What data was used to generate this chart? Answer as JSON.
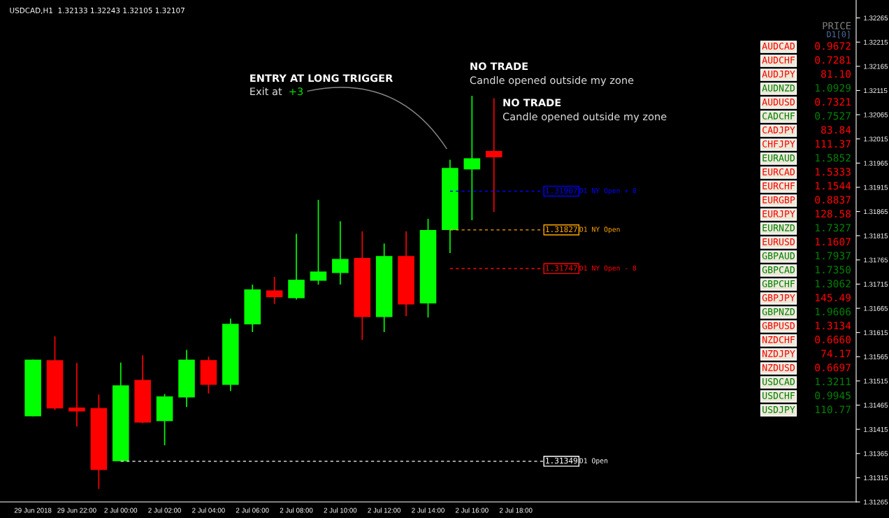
{
  "chart_data": [
    {
      "type": "candlestick",
      "title": "USDCAD,H1  1.32133 1.32243 1.32105 1.32107",
      "categories": [
        null,
        "29 Jun 2018",
        null,
        "29 Jun 22:00",
        null,
        "2 Jul 00:00",
        null,
        "2 Jul 02:00",
        null,
        "2 Jul 04:00",
        null,
        "2 Jul 06:00",
        null,
        "2 Jul 08:00",
        null,
        "2 Jul 10:00",
        null,
        "2 Jul 12:00",
        null,
        "2 Jul 14:00",
        null,
        "2 Jul 16:00",
        null,
        "2 Jul 18:00",
        null,
        null,
        null,
        null,
        null,
        null,
        null,
        null,
        null,
        null,
        null,
        null,
        null,
        null,
        null
      ],
      "ohlc": [
        null,
        [
          1.31442,
          1.31559,
          1.31442,
          1.31559
        ],
        [
          1.31558,
          1.31607,
          1.31455,
          1.31458
        ],
        [
          1.3146,
          1.31552,
          1.31421,
          1.31452
        ],
        [
          1.31459,
          1.31487,
          1.31292,
          1.31331
        ],
        [
          1.31349,
          1.31553,
          1.31349,
          1.31506
        ],
        [
          1.31517,
          1.31568,
          1.31428,
          1.31429
        ],
        [
          1.31432,
          1.31488,
          1.31382,
          1.31483
        ],
        [
          1.31481,
          1.31579,
          1.31461,
          1.31559
        ],
        [
          1.31558,
          1.31565,
          1.31489,
          1.31507
        ],
        [
          1.31507,
          1.31644,
          1.31494,
          1.31633
        ],
        [
          1.31632,
          1.31714,
          1.31616,
          1.31704
        ],
        [
          1.31702,
          1.3173,
          1.31674,
          1.31688
        ],
        [
          1.31686,
          1.31819,
          1.31683,
          1.31724
        ],
        [
          1.31722,
          1.31889,
          1.31714,
          1.31741
        ],
        [
          1.31738,
          1.31845,
          1.31714,
          1.31767
        ],
        [
          1.31769,
          1.31824,
          1.316,
          1.31647
        ],
        [
          1.31647,
          1.31799,
          1.31616,
          1.31773
        ],
        [
          1.31773,
          1.31824,
          1.31649,
          1.31673
        ],
        [
          1.31675,
          1.3185,
          1.31646,
          1.31827
        ],
        [
          1.31827,
          1.31972,
          1.31779,
          1.31955
        ],
        [
          1.31952,
          1.32104,
          1.31847,
          1.31975
        ],
        [
          1.3199,
          1.32099,
          1.31864,
          1.31977
        ],
        null,
        null,
        null,
        null,
        null,
        null,
        null,
        null,
        null,
        null,
        null,
        null,
        null,
        null,
        null,
        null
      ],
      "colors": [
        null,
        "#00ff00",
        "#ff0000",
        "#ff0000",
        "#ff0000",
        "#00ff00",
        "#ff0000",
        "#00ff00",
        "#00ff00",
        "#ff0000",
        "#00ff00",
        "#00ff00",
        "#ff0000",
        "#00ff00",
        "#00ff00",
        "#00ff00",
        "#ff0000",
        "#00ff00",
        "#ff0000",
        "#00ff00",
        "#00ff00",
        "#00ff00",
        "#ff0000",
        null,
        null,
        null,
        null,
        null,
        null,
        null,
        null,
        null,
        null,
        null,
        null,
        null,
        null,
        null,
        null
      ],
      "ylim": [
        1.31265,
        1.32302
      ],
      "yticks": [
        1.31265,
        1.31315,
        1.31365,
        1.31415,
        1.31465,
        1.31515,
        1.31565,
        1.31615,
        1.31665,
        1.31715,
        1.31765,
        1.31815,
        1.31865,
        1.31915,
        1.31965,
        1.32015,
        1.32065,
        1.32115,
        1.32165,
        1.32215,
        1.32265
      ],
      "ref_lines": [
        {
          "axis": "y",
          "value": 1.31907,
          "label": "1.31907",
          "color": "#0000ff",
          "line_style": "dashed"
        },
        {
          "axis": "y",
          "value": 1.31827,
          "label": "1.31827",
          "color": "#ffa500",
          "line_style": "dashed"
        },
        {
          "axis": "y",
          "value": 1.31747,
          "label": "1.31747",
          "color": "#ff0000",
          "line_style": "dashed"
        },
        {
          "axis": "y",
          "value": 1.31349,
          "label": "1.31349",
          "color": "#ffffff",
          "line_style": "dashed"
        }
      ],
      "annotations": [
        "ENTRY AT LONG TRIGGER",
        "Exit at",
        "+3",
        "NO TRADE",
        "Candle opened outside my zone",
        "NO TRADE",
        "Candle opened outside my zone",
        "D1 NY Open + 8",
        "D1 NY Open",
        "D1 NY Open - 8",
        "D1 Open"
      ]
    },
    {
      "type": "other",
      "title": "PRICE",
      "subtitle": "D1[0]",
      "categories": [
        "AUDCAD",
        "AUDCHF",
        "AUDJPY",
        "AUDNZD",
        "AUDUSD",
        "CADCHF",
        "CADJPY",
        "CHFJPY",
        "EURAUD",
        "EURCAD",
        "EURCHF",
        "EURGBP",
        "EURJPY",
        "EURNZD",
        "EURUSD",
        "GBPAUD",
        "GBPCAD",
        "GBPCHF",
        "GBPJPY",
        "GBPNZD",
        "GBPUSD",
        "NZDCHF",
        "NZDJPY",
        "NZDUSD",
        "USDCAD",
        "USDCHF",
        "USDJPY"
      ],
      "annotations": [
        "0.9672",
        "0.7281",
        "81.10",
        "1.0929",
        "0.7321",
        "0.7527",
        "83.84",
        "111.37",
        "1.5852",
        "1.5333",
        "1.1544",
        "0.8837",
        "128.58",
        "1.7327",
        "1.1607",
        "1.7937",
        "1.7350",
        "1.3062",
        "145.49",
        "1.9606",
        "1.3134",
        "0.6660",
        "74.17",
        "0.6697",
        "1.3211",
        "0.9945",
        "110.77"
      ],
      "colors": [
        "#ff0000",
        "#ff0000",
        "#ff0000",
        "#008000",
        "#ff0000",
        "#008000",
        "#ff0000",
        "#ff0000",
        "#008000",
        "#ff0000",
        "#ff0000",
        "#ff0000",
        "#ff0000",
        "#008000",
        "#ff0000",
        "#008000",
        "#008000",
        "#008000",
        "#ff0000",
        "#008000",
        "#ff0000",
        "#ff0000",
        "#ff0000",
        "#ff0000",
        "#008000",
        "#008000",
        "#008000"
      ]
    }
  ]
}
